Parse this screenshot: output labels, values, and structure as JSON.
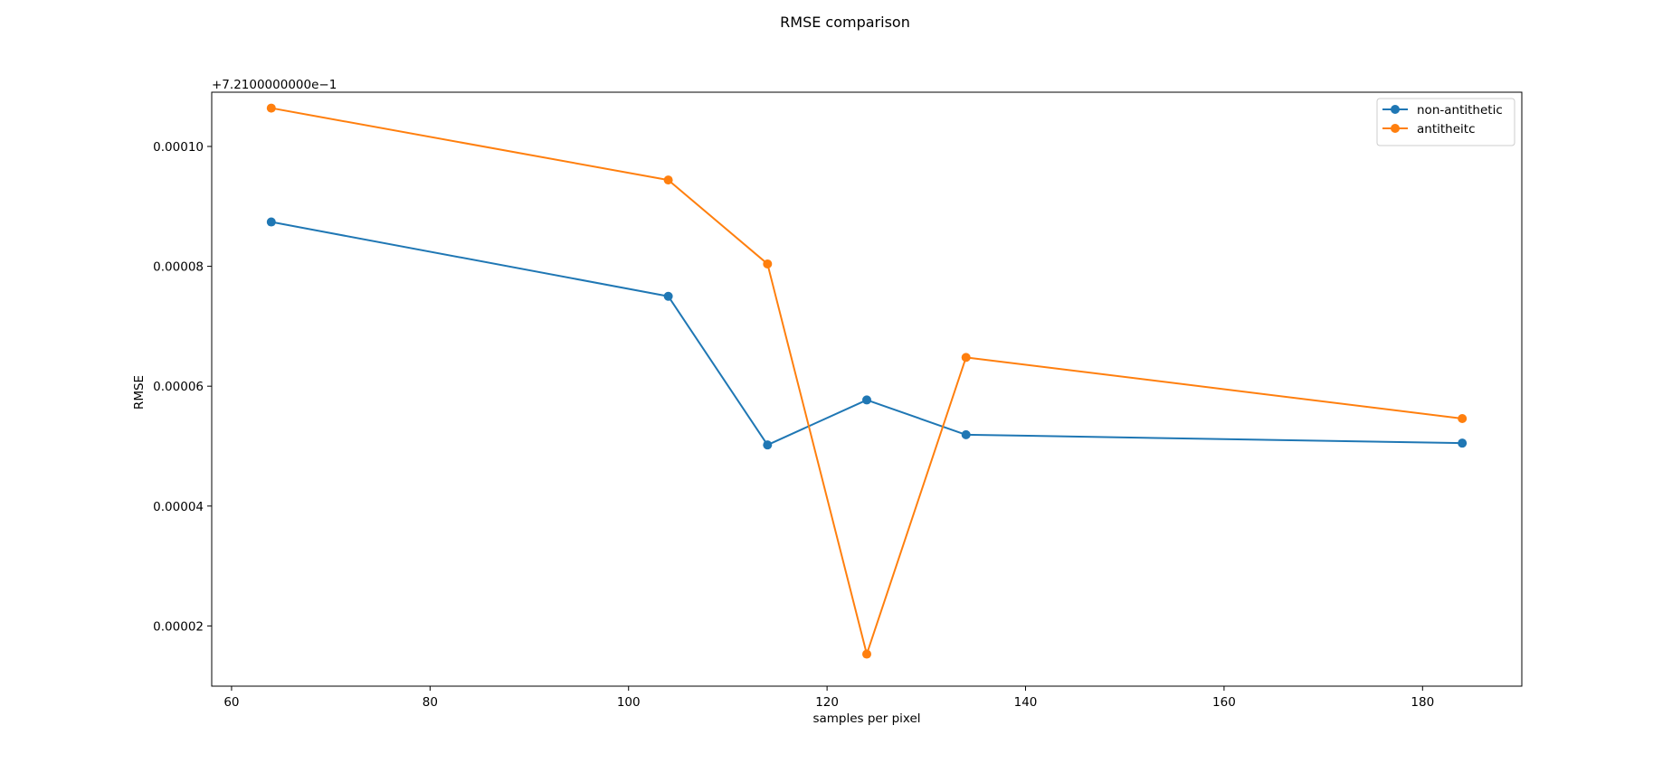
{
  "chart_data": {
    "type": "line",
    "title": "RMSE comparison",
    "xlabel": "samples per pixel",
    "ylabel": "RMSE",
    "y_offset_text": "+7.2100000000e−1",
    "xlim": [
      58,
      190
    ],
    "ylim": [
      9.95e-06,
      0.00010905
    ],
    "x_ticks": [
      60,
      80,
      100,
      120,
      140,
      160,
      180
    ],
    "x_tick_labels": [
      "60",
      "80",
      "100",
      "120",
      "140",
      "160",
      "180"
    ],
    "y_ticks": [
      2e-05,
      4e-05,
      6e-05,
      8e-05,
      0.0001
    ],
    "y_tick_labels": [
      "0.00002",
      "0.00004",
      "0.00006",
      "0.00008",
      "0.00010"
    ],
    "grid": false,
    "legend_position": "top-right",
    "x": [
      64,
      104,
      114,
      124,
      134,
      184
    ],
    "series": [
      {
        "name": "non-antithetic",
        "color": "#1f77b4",
        "marker": "circle",
        "values": [
          8.74e-05,
          7.5e-05,
          5.02e-05,
          5.77e-05,
          5.19e-05,
          5.05e-05
        ]
      },
      {
        "name": "antitheitc",
        "color": "#ff7f0e",
        "marker": "circle",
        "values": [
          0.0001064,
          9.44e-05,
          8.04e-05,
          1.53e-05,
          6.48e-05,
          5.46e-05
        ]
      }
    ]
  }
}
